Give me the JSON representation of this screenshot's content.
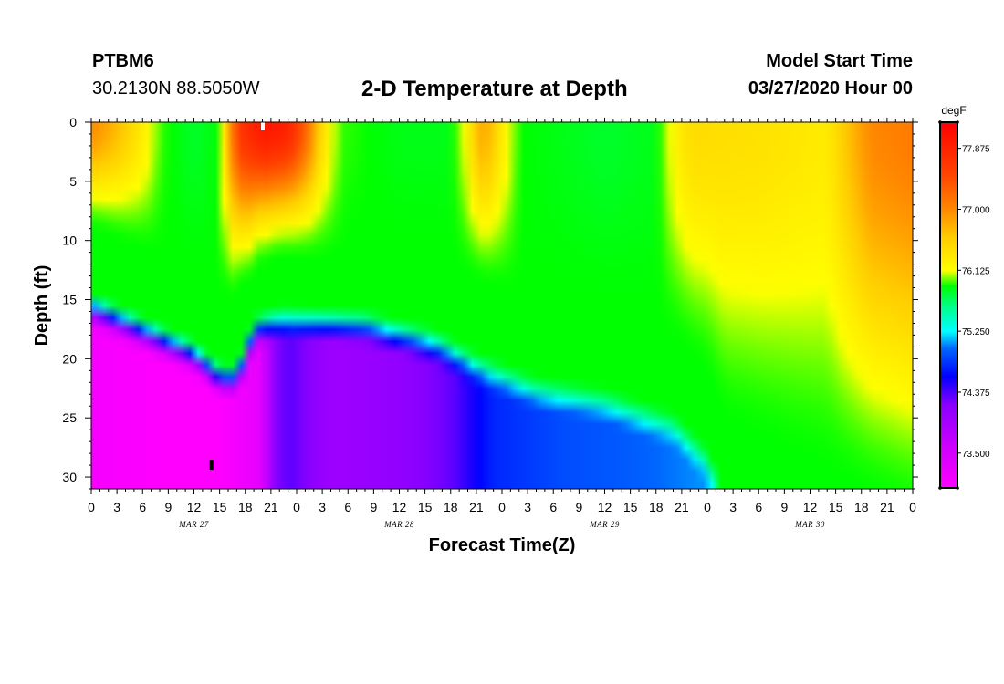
{
  "header": {
    "station_id": "PTBM6",
    "coordinates": "30.2130N 88.5050W",
    "title": "2-D Temperature at Depth",
    "model_start_label": "Model Start Time",
    "model_start_value": "03/27/2020 Hour 00"
  },
  "chart_data": {
    "type": "heatmap",
    "title": "2-D Temperature at Depth",
    "xlabel": "Forecast Time(Z)",
    "ylabel": "Depth (ft)",
    "x_range_hours": [
      0,
      96
    ],
    "y_range_ft": [
      0,
      31
    ],
    "y_inverted": true,
    "x_ticks": [
      "0",
      "3",
      "6",
      "9",
      "12",
      "15",
      "18",
      "21",
      "0",
      "3",
      "6",
      "9",
      "12",
      "15",
      "18",
      "21",
      "0",
      "3",
      "6",
      "9",
      "12",
      "15",
      "18",
      "21",
      "0",
      "3",
      "6",
      "9",
      "12",
      "15",
      "18",
      "21",
      "0"
    ],
    "date_labels": [
      {
        "text": "MAR 27",
        "hour": 12
      },
      {
        "text": "MAR 28",
        "hour": 36
      },
      {
        "text": "MAR 29",
        "hour": 60
      },
      {
        "text": "MAR 30",
        "hour": 84
      }
    ],
    "y_ticks": [
      "0",
      "5",
      "10",
      "15",
      "20",
      "25",
      "30"
    ],
    "y_tick_values": [
      0,
      5,
      10,
      15,
      20,
      25,
      30
    ],
    "colorbar": {
      "unit": "degF",
      "range": [
        73.0,
        78.25
      ],
      "labels": [
        "77.875",
        "77.000",
        "76.125",
        "75.250",
        "74.375",
        "73.500"
      ],
      "label_values": [
        77.875,
        77.0,
        76.125,
        75.25,
        74.375,
        73.5
      ],
      "stops": [
        {
          "value": 73.0,
          "color": "#ff00ff"
        },
        {
          "value": 73.6,
          "color": "#cc00ff"
        },
        {
          "value": 74.2,
          "color": "#8800ff"
        },
        {
          "value": 74.6,
          "color": "#0000ff"
        },
        {
          "value": 75.0,
          "color": "#0066ff"
        },
        {
          "value": 75.25,
          "color": "#00ffff"
        },
        {
          "value": 75.6,
          "color": "#00ff88"
        },
        {
          "value": 75.9,
          "color": "#00ff00"
        },
        {
          "value": 76.125,
          "color": "#ffff00"
        },
        {
          "value": 76.6,
          "color": "#ffcc00"
        },
        {
          "value": 77.0,
          "color": "#ff8800"
        },
        {
          "value": 77.5,
          "color": "#ff4400"
        },
        {
          "value": 78.25,
          "color": "#ff0000"
        }
      ]
    },
    "markers": [
      {
        "hour": 20,
        "depth_ft": 0.3,
        "color": "#ffffff"
      },
      {
        "hour": 14,
        "depth_ft": 29,
        "color": "#000000"
      }
    ]
  }
}
